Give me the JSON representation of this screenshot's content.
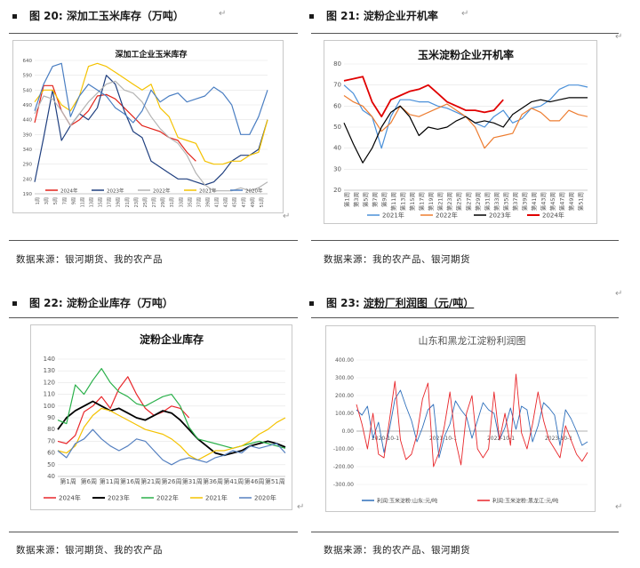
{
  "figures": [
    {
      "number": "图 20:",
      "title": "深加工玉米库存（万吨）",
      "source": "数据来源：银河期货、我的农产品",
      "chart_data": {
        "type": "line",
        "title": "深加工企业玉米库存",
        "yticks": [
          "190",
          "240",
          "290",
          "340",
          "390",
          "440",
          "490",
          "540",
          "590",
          "640"
        ],
        "ylim": [
          190,
          640
        ],
        "n": 27,
        "xticks": [
          "1周",
          "3周",
          "5周",
          "7周",
          "9周",
          "11周",
          "13周",
          "15周",
          "17周",
          "19周",
          "21周",
          "23周",
          "25周",
          "27周",
          "29周",
          "31周",
          "33周",
          "35周",
          "37周",
          "39周",
          "41周",
          "43周",
          "45周",
          "47周",
          "49周",
          "51周"
        ],
        "series": [
          {
            "name": "2024年",
            "color": "#e2231a",
            "values": [
              430,
              555,
              555,
              470,
              420,
              440,
              470,
              520,
              525,
              510,
              480,
              450,
              420,
              410,
              400,
              380,
              370,
              330,
              300,
              null,
              null,
              null,
              null,
              null,
              null,
              null,
              null
            ]
          },
          {
            "name": "2023年",
            "color": "#1f3f7f",
            "values": [
              230,
              380,
              540,
              370,
              420,
              460,
              440,
              480,
              590,
              560,
              470,
              400,
              380,
              300,
              280,
              260,
              240,
              240,
              230,
              220,
              230,
              260,
              300,
              320,
              320,
              340,
              440
            ]
          },
          {
            "name": "2022年",
            "color": "#b4b4b4",
            "values": [
              460,
              520,
              510,
              470,
              420,
              460,
              500,
              530,
              560,
              570,
              540,
              530,
              500,
              450,
              410,
              380,
              360,
              320,
              260,
              220,
              200,
              200,
              200,
              210,
              200,
              210,
              230
            ]
          },
          {
            "name": "2021年",
            "color": "#f4c200",
            "values": [
              500,
              540,
              540,
              490,
              470,
              520,
              620,
              630,
              620,
              600,
              580,
              560,
              540,
              560,
              480,
              450,
              380,
              370,
              360,
              300,
              290,
              290,
              300,
              300,
              320,
              330,
              440
            ]
          },
          {
            "name": "2020年",
            "color": "#4a7ec2",
            "values": [
              470,
              560,
              620,
              630,
              450,
              520,
              560,
              540,
              520,
              480,
              460,
              430,
              470,
              540,
              500,
              520,
              530,
              500,
              510,
              520,
              550,
              530,
              490,
              390,
              390,
              450,
              540
            ]
          }
        ]
      }
    },
    {
      "number": "图 21:",
      "title": "淀粉企业开机率",
      "source": "数据来源：我的农产品、银河期货",
      "chart_data": {
        "type": "line",
        "title": "玉米淀粉企业开机率",
        "yticks": [
          "20",
          "30",
          "40",
          "50",
          "60",
          "70",
          "80"
        ],
        "ylim": [
          20,
          80
        ],
        "n": 27,
        "xticks": [
          "第1周",
          "第3周",
          "第5周",
          "第7周",
          "第9周",
          "第11周",
          "第13周",
          "第15周",
          "第17周",
          "第19周",
          "第21周",
          "第23周",
          "第25周",
          "第27周",
          "第29周",
          "第31周",
          "第33周",
          "第35周",
          "第37周",
          "第39周",
          "第41周",
          "第43周",
          "第45周",
          "第47周",
          "第49周",
          "第51周"
        ],
        "series": [
          {
            "name": "2021年",
            "color": "#4a90d9",
            "values": [
              70,
              66,
              58,
              55,
              40,
              55,
              63,
              63,
              62,
              62,
              60,
              59,
              57,
              55,
              52,
              50,
              55,
              58,
              52,
              54,
              59,
              60,
              63,
              68,
              70,
              70,
              69
            ]
          },
          {
            "name": "2022年",
            "color": "#ed7d31",
            "values": [
              65,
              62,
              60,
              55,
              48,
              52,
              60,
              56,
              55,
              57,
              59,
              61,
              58,
              55,
              50,
              40,
              45,
              46,
              47,
              56,
              59,
              57,
              53,
              53,
              58,
              56,
              55
            ]
          },
          {
            "name": "2023年",
            "color": "#000000",
            "values": [
              52,
              42,
              33,
              40,
              50,
              57,
              60,
              55,
              46,
              50,
              49,
              50,
              53,
              55,
              52,
              53,
              52,
              50,
              56,
              59,
              62,
              63,
              62,
              63,
              64,
              64,
              64
            ]
          },
          {
            "name": "2024年",
            "color": "#e00000",
            "values": [
              72,
              73,
              74,
              62,
              55,
              63,
              65,
              67,
              68,
              70,
              66,
              62,
              60,
              58,
              58,
              57,
              58,
              63,
              null,
              null,
              null,
              null,
              null,
              null,
              null,
              null,
              null
            ]
          }
        ]
      }
    },
    {
      "number": "图 22:",
      "title": "淀粉企业库存（万吨）",
      "source": "数据来源：银河期货、我的农产品",
      "chart_data": {
        "type": "line",
        "title": "淀粉企业库存",
        "yticks": [
          "40",
          "50",
          "60",
          "70",
          "80",
          "90",
          "100",
          "110",
          "120",
          "130",
          "140"
        ],
        "ylim": [
          40,
          140
        ],
        "n": 27,
        "xticks": [
          "第1周",
          "第6周",
          "第11周",
          "第16周",
          "第21周",
          "第26周",
          "第31周",
          "第36周",
          "第41周",
          "第46周",
          "第51周"
        ],
        "series": [
          {
            "name": "2024年",
            "color": "#e8262a",
            "values": [
              70,
              68,
              75,
              95,
              100,
              108,
              98,
              115,
              125,
              110,
              98,
              92,
              95,
              100,
              98,
              90,
              null,
              null,
              null,
              null,
              null,
              null,
              null,
              null,
              null,
              null,
              null
            ]
          },
          {
            "name": "2023年",
            "color": "#000000",
            "values": [
              80,
              90,
              96,
              100,
              104,
              100,
              96,
              98,
              94,
              90,
              88,
              92,
              96,
              94,
              88,
              80,
              72,
              66,
              60,
              58,
              60,
              62,
              66,
              68,
              70,
              68,
              65
            ]
          },
          {
            "name": "2022年",
            "color": "#2ab04a",
            "values": [
              88,
              85,
              118,
              110,
              122,
              132,
              120,
              112,
              108,
              102,
              100,
              104,
              108,
              110,
              100,
              82,
              72,
              70,
              68,
              66,
              64,
              66,
              68,
              70,
              68,
              66,
              64
            ]
          },
          {
            "name": "2021年",
            "color": "#f4c200",
            "values": [
              62,
              60,
              66,
              82,
              92,
              98,
              96,
              92,
              88,
              84,
              80,
              78,
              76,
              72,
              66,
              58,
              54,
              58,
              62,
              62,
              64,
              66,
              70,
              76,
              80,
              86,
              90
            ]
          },
          {
            "name": "2020年",
            "color": "#5580c0",
            "values": [
              62,
              56,
              68,
              72,
              80,
              72,
              66,
              62,
              66,
              72,
              70,
              62,
              54,
              50,
              54,
              56,
              54,
              52,
              56,
              58,
              62,
              60,
              66,
              64,
              66,
              68,
              60
            ]
          }
        ]
      }
    },
    {
      "number": "图 23:",
      "title": "淀粉厂利润图（元/吨）",
      "source": "数据来源：我的农产品、银河期货",
      "chart_data": {
        "type": "line",
        "title": "山东和黑龙江淀粉利润图",
        "yticks": [
          "-300.00",
          "-200.00",
          "-100.00",
          "0.00",
          "100.00",
          "200.00",
          "300.00",
          "400.00"
        ],
        "ylim": [
          -300,
          400
        ],
        "xticks": [
          "2020-10-1",
          "2021-10-1",
          "2022-10-1",
          "2023-10-1"
        ],
        "series": [
          {
            "name": "利润:玉米淀粉:山东:元/吨",
            "color": "#2e6fbb",
            "values": [
              120,
              90,
              140,
              -40,
              50,
              -120,
              10,
              180,
              230,
              140,
              60,
              -60,
              20,
              120,
              150,
              -150,
              -30,
              40,
              170,
              120,
              80,
              -40,
              60,
              160,
              120,
              100,
              -50,
              20,
              130,
              10,
              140,
              120,
              -60,
              30,
              160,
              130,
              90,
              -80,
              120,
              70,
              0,
              -80,
              -60
            ]
          },
          {
            "name": "利润:玉米淀粉:黑龙江:元/吨",
            "color": "#e8262a",
            "values": [
              150,
              40,
              -100,
              100,
              -130,
              -150,
              60,
              280,
              -50,
              -160,
              -130,
              -20,
              180,
              270,
              -200,
              -120,
              30,
              220,
              -50,
              -190,
              100,
              200,
              -100,
              -150,
              -100,
              220,
              -50,
              100,
              -80,
              320,
              -10,
              -100,
              40,
              220,
              60,
              -50,
              -100,
              -150,
              30,
              -50,
              -130,
              -170,
              -120
            ]
          }
        ]
      }
    }
  ]
}
